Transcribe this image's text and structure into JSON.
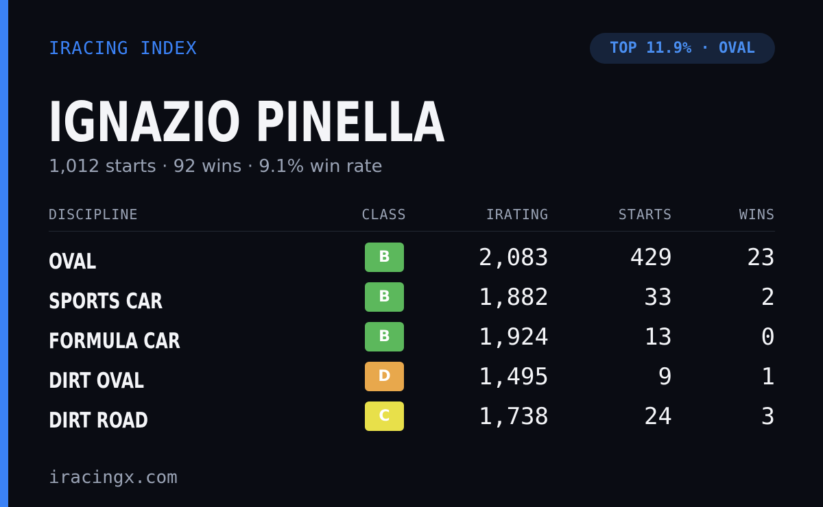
{
  "header": {
    "brand": "IRACING INDEX",
    "badge": "TOP 11.9% · OVAL"
  },
  "driver": {
    "name": "IGNAZIO PINELLA",
    "summary": "1,012 starts · 92 wins · 9.1% win rate"
  },
  "table": {
    "columns": [
      "DISCIPLINE",
      "CLASS",
      "IRATING",
      "STARTS",
      "WINS"
    ],
    "rows": [
      {
        "discipline": "OVAL",
        "class": "B",
        "class_color": "#5cb85c",
        "irating": "2,083",
        "starts": "429",
        "wins": "23"
      },
      {
        "discipline": "SPORTS CAR",
        "class": "B",
        "class_color": "#5cb85c",
        "irating": "1,882",
        "starts": "33",
        "wins": "2"
      },
      {
        "discipline": "FORMULA CAR",
        "class": "B",
        "class_color": "#5cb85c",
        "irating": "1,924",
        "starts": "13",
        "wins": "0"
      },
      {
        "discipline": "DIRT OVAL",
        "class": "D",
        "class_color": "#e8a84c",
        "irating": "1,495",
        "starts": "9",
        "wins": "1"
      },
      {
        "discipline": "DIRT ROAD",
        "class": "C",
        "class_color": "#e8e04a",
        "irating": "1,738",
        "starts": "24",
        "wins": "3"
      }
    ]
  },
  "footer": {
    "site": "iracingx.com"
  }
}
